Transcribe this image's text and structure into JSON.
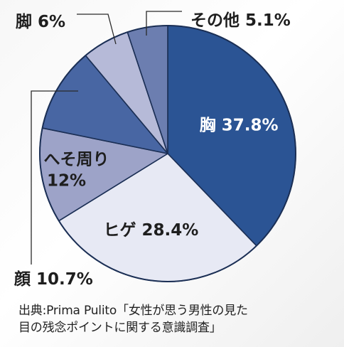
{
  "chart_data": {
    "type": "pie",
    "title": "",
    "start_angle_deg": 0,
    "direction": "clockwise",
    "slices": [
      {
        "label": "胸",
        "value": 37.8,
        "value_text": "37.8%",
        "color": "#2b5494",
        "text_color": "#ffffff",
        "label_position": "inside"
      },
      {
        "label": "ヒゲ",
        "value": 28.4,
        "value_text": "28.4%",
        "color": "#e7e9f4",
        "text_color": "#1e1e1e",
        "label_position": "inside"
      },
      {
        "label": "へそ周り",
        "value": 12,
        "value_text": "12%",
        "color": "#9da3c8",
        "text_color": "#1e1e1e",
        "label_position": "inside"
      },
      {
        "label": "顔",
        "value": 10.7,
        "value_text": "10.7%",
        "color": "#4866a3",
        "text_color": "#1e1e1e",
        "label_position": "outside-leader"
      },
      {
        "label": "脚",
        "value": 6,
        "value_text": "6%",
        "color": "#b6bad8",
        "text_color": "#1e1e1e",
        "label_position": "outside-leader"
      },
      {
        "label": "その他",
        "value": 5.1,
        "value_text": "5.1%",
        "color": "#6c7eb0",
        "text_color": "#1e1e1e",
        "label_position": "outside-leader"
      }
    ]
  },
  "source": {
    "line1": "出典:Prima Pulito「女性が思う男性の見た",
    "line2": "目の残念ポイントに関する意識調査」"
  }
}
